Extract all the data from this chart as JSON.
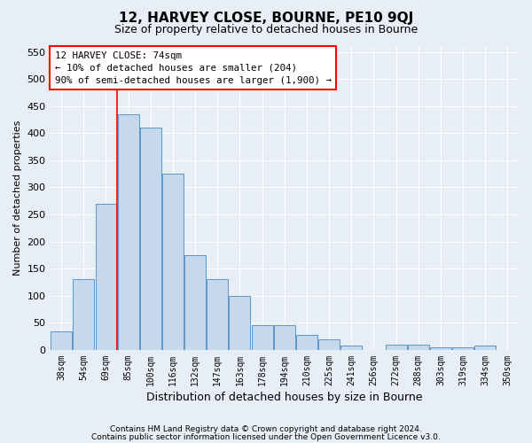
{
  "title": "12, HARVEY CLOSE, BOURNE, PE10 9QJ",
  "subtitle": "Size of property relative to detached houses in Bourne",
  "xlabel": "Distribution of detached houses by size in Bourne",
  "ylabel": "Number of detached properties",
  "categories": [
    "38sqm",
    "54sqm",
    "69sqm",
    "85sqm",
    "100sqm",
    "116sqm",
    "132sqm",
    "147sqm",
    "163sqm",
    "178sqm",
    "194sqm",
    "210sqm",
    "225sqm",
    "241sqm",
    "256sqm",
    "272sqm",
    "288sqm",
    "303sqm",
    "319sqm",
    "334sqm",
    "350sqm"
  ],
  "values": [
    35,
    130,
    270,
    435,
    410,
    325,
    175,
    130,
    100,
    45,
    45,
    28,
    20,
    8,
    0,
    10,
    10,
    5,
    5,
    8,
    0
  ],
  "bar_color": "#c5d8ec",
  "bar_edge_color": "#5a96c8",
  "red_line_x": 2.5,
  "annotation_line1": "12 HARVEY CLOSE: 74sqm",
  "annotation_line2": "← 10% of detached houses are smaller (204)",
  "annotation_line3": "90% of semi-detached houses are larger (1,900) →",
  "ylim": [
    0,
    560
  ],
  "yticks": [
    0,
    50,
    100,
    150,
    200,
    250,
    300,
    350,
    400,
    450,
    500,
    550
  ],
  "footer_line1": "Contains HM Land Registry data © Crown copyright and database right 2024.",
  "footer_line2": "Contains public sector information licensed under the Open Government Licence v3.0.",
  "background_color": "#e8eef5",
  "plot_bg_color": "#e8eef5",
  "grid_color": "#ffffff",
  "title_fontsize": 11,
  "subtitle_fontsize": 9
}
